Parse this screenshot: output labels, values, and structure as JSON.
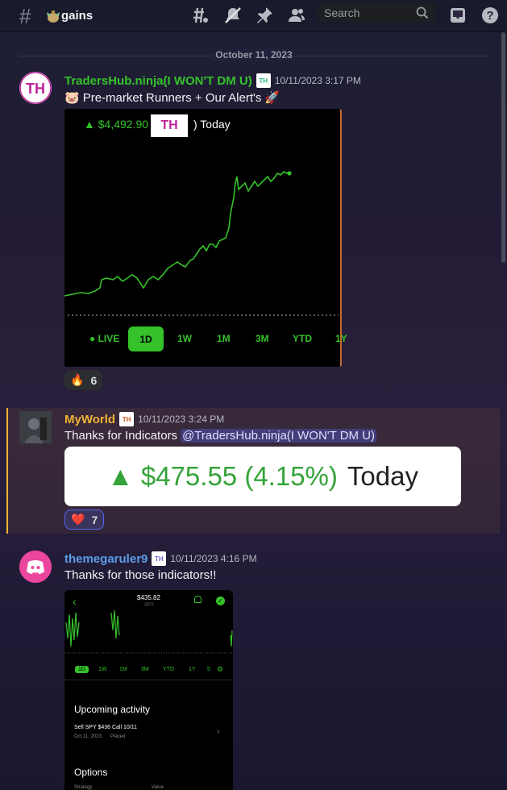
{
  "header": {
    "channel_hash": "#",
    "channel_name": "gains",
    "search_placeholder": "Search",
    "icons": [
      "threads-icon",
      "mute-icon",
      "pin-icon",
      "members-icon",
      "inbox-icon",
      "help-icon"
    ]
  },
  "divider": {
    "date": "October 11, 2023"
  },
  "messages": [
    {
      "username": "TradersHub.ninja(I WON'T DM U)",
      "username_color": "#35c22b",
      "timestamp": "10/11/2023 3:17 PM",
      "text": "Pre-market Runners + Our Alert's",
      "embed": {
        "price": "▲ $4,492.90",
        "logo": "TH",
        "suffix": ") Today",
        "tabs": [
          "● LIVE",
          "1D",
          "1W",
          "1M",
          "3M",
          "YTD",
          "1Y"
        ],
        "selected_tab": "1D"
      },
      "reaction": {
        "emoji": "🔥",
        "count": "6"
      }
    },
    {
      "username": "MyWorld",
      "username_color": "#f0b232",
      "timestamp": "10/11/2023 3:24 PM",
      "text": "Thanks for Indicators",
      "mention": "@TradersHub.ninja(I WON'T DM U)",
      "embed": {
        "gain": "▲ $475.55 (4.15%)",
        "today": "Today"
      },
      "reaction": {
        "emoji": "❤️",
        "count": "7"
      }
    },
    {
      "username": "themegaruler9",
      "username_color": "#5a9de8",
      "timestamp": "10/11/2023 4:16 PM",
      "text": "Thanks for those indicators!!",
      "phone": {
        "price": "$435.82",
        "ticker": "SPY",
        "tabs": [
          "1D",
          "1W",
          "1M",
          "3M",
          "YTD",
          "1Y",
          "5"
        ],
        "section1": "Upcoming activity",
        "order": "Sell SPY $436 Call 10/11",
        "order_date": "Oct 11, 2023",
        "order_status": "Placed",
        "section2": "Options",
        "col1": "Strategy",
        "col2": "Value"
      }
    }
  ]
}
